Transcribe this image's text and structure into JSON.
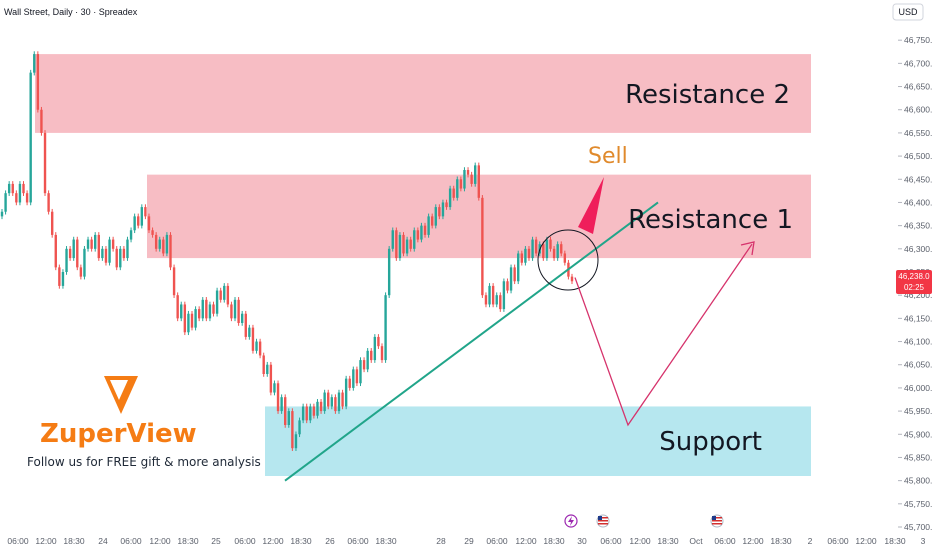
{
  "header": {
    "title": "Wall Street, Daily · 30 · Spreadex",
    "currency": "USD"
  },
  "price_badge": {
    "price": "46,238.0",
    "countdown": "02:25",
    "color": "#f23645"
  },
  "branding": {
    "name": "ZuperView",
    "tagline": "Follow us for FREE gift & more analysis",
    "color": "#f57c14"
  },
  "colors": {
    "up": "#26a69a",
    "down": "#ef5350",
    "resistance": "#f7b9c1",
    "support": "#b2e6ee",
    "trendline": "#21a58a",
    "projection": "#d6336c"
  },
  "chart_data": {
    "type": "candlestick",
    "title": "Wall Street, Daily · 30 · Spreadex",
    "ylim": [
      45700,
      46800
    ],
    "y_ticks": [
      45700,
      45750,
      45800,
      45850,
      45900,
      45950,
      46000,
      46050,
      46100,
      46150,
      46200,
      46250,
      46300,
      46350,
      46400,
      46450,
      46500,
      46550,
      46600,
      46650,
      46700,
      46750
    ],
    "y_tick_labels": [
      "45,700.0",
      "45,750.0",
      "45,800.0",
      "45,850.0",
      "45,900.0",
      "45,950.0",
      "46,000.0",
      "46,050.0",
      "46,100.0",
      "46,150.0",
      "46,200.0",
      "46,250.0",
      "46,300.0",
      "46,350.0",
      "46,400.0",
      "46,450.0",
      "46,500.0",
      "46,550.0",
      "46,600.0",
      "46,650.0",
      "46,700.0",
      "46,750.0"
    ],
    "x_tick_labels": [
      "06:00",
      "12:00",
      "18:30",
      "24",
      "06:00",
      "12:00",
      "18:30",
      "25",
      "06:00",
      "12:00",
      "18:30",
      "26",
      "06:00",
      "18:30",
      "28",
      "29",
      "06:00",
      "12:00",
      "18:30",
      "30",
      "06:00",
      "12:00",
      "18:30",
      "Oct",
      "06:00",
      "12:00",
      "18:30",
      "2",
      "06:00",
      "12:00",
      "18:30",
      "3"
    ],
    "series": [
      {
        "name": "price",
        "values": [
          46380,
          46420,
          46440,
          46420,
          46400,
          46440,
          46420,
          46400,
          46680,
          46720,
          46600,
          46550,
          46420,
          46380,
          46330,
          46260,
          46220,
          46250,
          46300,
          46280,
          46320,
          46260,
          46240,
          46300,
          46320,
          46300,
          46330,
          46280,
          46300,
          46270,
          46320,
          46300,
          46260,
          46300,
          46280,
          46320,
          46340,
          46370,
          46350,
          46390,
          46370,
          46340,
          46330,
          46300,
          46320,
          46290,
          46330,
          46260,
          46200,
          46150,
          46180,
          46120,
          46160,
          46130,
          46170,
          46150,
          46190,
          46150,
          46180,
          46160,
          46210,
          46190,
          46220,
          46180,
          46150,
          46190,
          46140,
          46160,
          46110,
          46130,
          46080,
          46100,
          46070,
          46030,
          46050,
          45990,
          46010,
          45950,
          45980,
          45920,
          45950,
          45870,
          45900,
          45930,
          45960,
          45930,
          45960,
          45940,
          45970,
          45950,
          45990,
          45960,
          45980,
          45950,
          45990,
          45960,
          46020,
          46000,
          46040,
          46010,
          46060,
          46040,
          46080,
          46060,
          46110,
          46090,
          46060,
          46200,
          46300,
          46340,
          46280,
          46330,
          46290,
          46320,
          46300,
          46340,
          46320,
          46350,
          46330,
          46370,
          46350,
          46390,
          46370,
          46400,
          46390,
          46430,
          46410,
          46450,
          46430,
          46470,
          46460,
          46440,
          46480,
          46410,
          46200,
          46180,
          46220,
          46180,
          46200,
          46170,
          46230,
          46210,
          46260,
          46230,
          46290,
          46270,
          46300,
          46280,
          46320,
          46290,
          46310,
          46280,
          46320,
          46300,
          46280,
          46310,
          46290,
          46270,
          46240,
          46230
        ]
      }
    ],
    "zones": [
      {
        "name": "Resistance 2",
        "from": 46550,
        "to": 46720
      },
      {
        "name": "Resistance 1",
        "from": 46280,
        "to": 46460
      },
      {
        "name": "Support",
        "from": 45810,
        "to": 45960
      }
    ],
    "annotations": [
      "Sell",
      "Resistance 2",
      "Resistance 1",
      "Support"
    ],
    "trendline": {
      "from": 45800,
      "to": 46400
    },
    "projection": [
      46238,
      45920,
      46310
    ]
  }
}
